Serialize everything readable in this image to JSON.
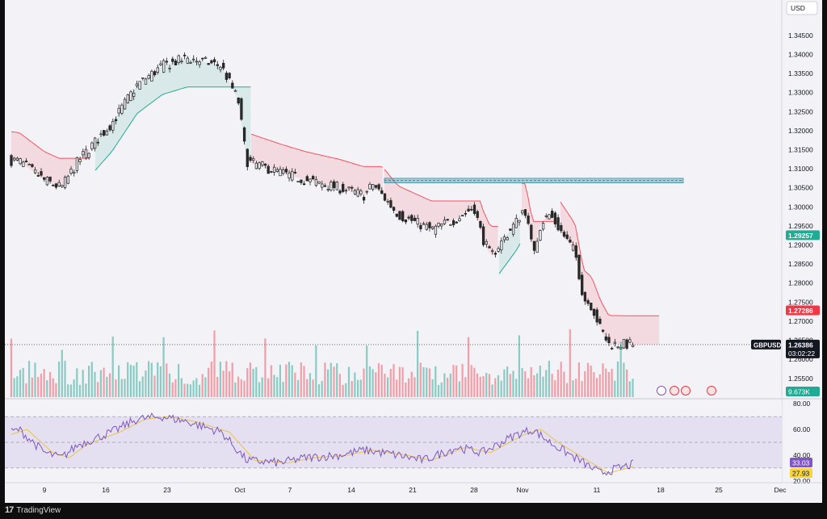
{
  "footer": {
    "brand_name": "TradingView",
    "logo_mark": "17"
  },
  "chart_data": [
    {
      "type": "candlestick",
      "title": "",
      "symbol": "GBPUSD",
      "currency": "USD",
      "x_ticks": [
        "9",
        "16",
        "23",
        "Oct",
        "7",
        "14",
        "21",
        "28",
        "Nov",
        "11",
        "18",
        "25",
        "Dec"
      ],
      "y_ticks": [
        "1.34500",
        "1.34000",
        "1.33500",
        "1.33000",
        "1.32500",
        "1.32000",
        "1.31500",
        "1.31000",
        "1.30500",
        "1.30000",
        "1.29500",
        "1.29000",
        "1.28500",
        "1.28000",
        "1.27500",
        "1.27000",
        "1.26500",
        "1.26000",
        "1.25500"
      ],
      "ylim": [
        1.2505,
        1.349
      ],
      "current_price": "1.26386",
      "countdown": "03:02:22",
      "trailing_stop_support": "1.29257",
      "trailing_stop_resistance": "1.27286",
      "resistance_zone": [
        1.3063,
        1.3075
      ],
      "volume_label": "9.673K",
      "approx_closes": [
        {
          "date": "2024-09-02",
          "close": 1.313
        },
        {
          "date": "2024-09-06",
          "close": 1.312
        },
        {
          "date": "2024-09-09",
          "close": 1.307
        },
        {
          "date": "2024-09-11",
          "close": 1.305
        },
        {
          "date": "2024-09-13",
          "close": 1.312
        },
        {
          "date": "2024-09-17",
          "close": 1.322
        },
        {
          "date": "2024-09-20",
          "close": 1.332
        },
        {
          "date": "2024-09-23",
          "close": 1.337
        },
        {
          "date": "2024-09-26",
          "close": 1.339
        },
        {
          "date": "2024-09-30",
          "close": 1.337
        },
        {
          "date": "2024-10-02",
          "close": 1.328
        },
        {
          "date": "2024-10-03",
          "close": 1.312
        },
        {
          "date": "2024-10-07",
          "close": 1.309
        },
        {
          "date": "2024-10-10",
          "close": 1.307
        },
        {
          "date": "2024-10-14",
          "close": 1.305
        },
        {
          "date": "2024-10-17",
          "close": 1.303
        },
        {
          "date": "2024-10-18",
          "close": 1.306
        },
        {
          "date": "2024-10-21",
          "close": 1.298
        },
        {
          "date": "2024-10-23",
          "close": 1.296
        },
        {
          "date": "2024-10-25",
          "close": 1.294
        },
        {
          "date": "2024-10-28",
          "close": 1.297
        },
        {
          "date": "2024-10-30",
          "close": 1.3
        },
        {
          "date": "2024-10-31",
          "close": 1.292
        },
        {
          "date": "2024-11-01",
          "close": 1.287
        },
        {
          "date": "2024-11-04",
          "close": 1.296
        },
        {
          "date": "2024-11-05",
          "close": 1.3
        },
        {
          "date": "2024-11-06",
          "close": 1.288
        },
        {
          "date": "2024-11-07",
          "close": 1.296
        },
        {
          "date": "2024-11-08",
          "close": 1.298
        },
        {
          "date": "2024-11-11",
          "close": 1.288
        },
        {
          "date": "2024-11-12",
          "close": 1.276
        },
        {
          "date": "2024-11-13",
          "close": 1.274
        },
        {
          "date": "2024-11-14",
          "close": 1.268
        },
        {
          "date": "2024-11-15",
          "close": 1.264
        },
        {
          "date": "2024-11-18",
          "close": 1.2639
        }
      ]
    },
    {
      "type": "line",
      "title": "",
      "y_ticks": [
        "80.00",
        "60.00",
        "40.00",
        "20.00"
      ],
      "ylim": [
        18,
        82
      ],
      "band": [
        30,
        70
      ],
      "middle_line": 50,
      "rsi_value": "33.03",
      "rsi_ma_value": "27.93",
      "approx_rsi": [
        {
          "date": "2024-09-02",
          "value": 52
        },
        {
          "date": "2024-09-06",
          "value": 60
        },
        {
          "date": "2024-09-09",
          "value": 42
        },
        {
          "date": "2024-09-11",
          "value": 38
        },
        {
          "date": "2024-09-13",
          "value": 48
        },
        {
          "date": "2024-09-17",
          "value": 58
        },
        {
          "date": "2024-09-20",
          "value": 68
        },
        {
          "date": "2024-09-23",
          "value": 70
        },
        {
          "date": "2024-09-26",
          "value": 66
        },
        {
          "date": "2024-09-30",
          "value": 58
        },
        {
          "date": "2024-10-03",
          "value": 36
        },
        {
          "date": "2024-10-07",
          "value": 34
        },
        {
          "date": "2024-10-10",
          "value": 38
        },
        {
          "date": "2024-10-14",
          "value": 40
        },
        {
          "date": "2024-10-17",
          "value": 44
        },
        {
          "date": "2024-10-21",
          "value": 40
        },
        {
          "date": "2024-10-24",
          "value": 36
        },
        {
          "date": "2024-10-28",
          "value": 46
        },
        {
          "date": "2024-10-31",
          "value": 42
        },
        {
          "date": "2024-11-04",
          "value": 56
        },
        {
          "date": "2024-11-06",
          "value": 60
        },
        {
          "date": "2024-11-08",
          "value": 50
        },
        {
          "date": "2024-11-12",
          "value": 34
        },
        {
          "date": "2024-11-14",
          "value": 26
        },
        {
          "date": "2024-11-18",
          "value": 33.03
        }
      ]
    }
  ]
}
